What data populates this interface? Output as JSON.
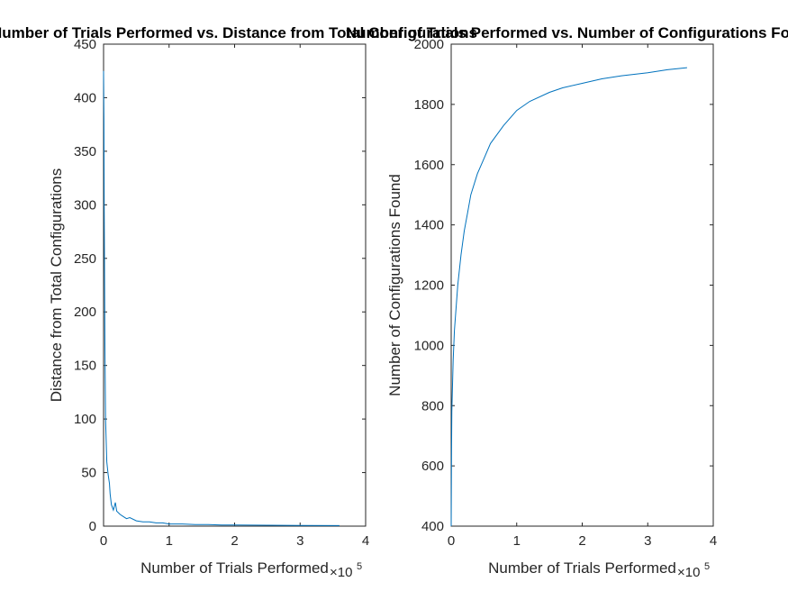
{
  "chart_data": [
    {
      "type": "line",
      "title": "Number of Trials Performed vs. Distance from Total Configurations",
      "xlabel": "Number of Trials Performed",
      "ylabel": "Distance from Total Configurations",
      "x_exponent_base": "×10",
      "x_exponent_power": "5",
      "xlim": [
        0,
        4
      ],
      "ylim": [
        0,
        450
      ],
      "xticks": [
        0,
        1,
        2,
        3,
        4
      ],
      "xtick_labels": [
        "0",
        "1",
        "2",
        "3",
        "4"
      ],
      "yticks": [
        0,
        50,
        100,
        150,
        200,
        250,
        300,
        350,
        400,
        450
      ],
      "ytick_labels": [
        "0",
        "50",
        "100",
        "150",
        "200",
        "250",
        "300",
        "350",
        "400",
        "450"
      ],
      "grid": false,
      "color": "#0072BD",
      "series": [
        {
          "x": [
            0,
            0.005,
            0.01,
            0.02,
            0.03,
            0.05,
            0.07,
            0.09,
            0.1,
            0.12,
            0.15,
            0.18,
            0.2,
            0.25,
            0.3,
            0.35,
            0.4,
            0.5,
            0.6,
            0.7,
            0.8,
            0.9,
            1.0,
            1.2,
            1.4,
            1.6,
            1.8,
            2.0,
            2.5,
            3.0,
            3.6
          ],
          "y": [
            425,
            380,
            300,
            170,
            100,
            60,
            48,
            40,
            30,
            20,
            15,
            22,
            14,
            11,
            9,
            7,
            8,
            5,
            4,
            4,
            3,
            3,
            2,
            2,
            1.5,
            1.5,
            1,
            1,
            0.8,
            0.6,
            0.5
          ]
        }
      ]
    },
    {
      "type": "line",
      "title": "Number of Trials Performed vs. Number of Configurations Found",
      "xlabel": "Number of Trials Performed",
      "ylabel": "Number of Configurations Found",
      "x_exponent_base": "×10",
      "x_exponent_power": "5",
      "xlim": [
        0,
        4
      ],
      "ylim": [
        400,
        2000
      ],
      "xticks": [
        0,
        1,
        2,
        3,
        4
      ],
      "xtick_labels": [
        "0",
        "1",
        "2",
        "3",
        "4"
      ],
      "yticks": [
        400,
        600,
        800,
        1000,
        1200,
        1400,
        1600,
        1800,
        2000
      ],
      "ytick_labels": [
        "400",
        "600",
        "800",
        "1000",
        "1200",
        "1400",
        "1600",
        "1800",
        "2000"
      ],
      "grid": false,
      "color": "#0072BD",
      "series": [
        {
          "x": [
            0,
            0.005,
            0.01,
            0.03,
            0.05,
            0.1,
            0.15,
            0.2,
            0.25,
            0.3,
            0.4,
            0.5,
            0.6,
            0.8,
            1.0,
            1.2,
            1.5,
            1.7,
            2.0,
            2.3,
            2.6,
            3.0,
            3.3,
            3.6
          ],
          "y": [
            400,
            650,
            780,
            950,
            1050,
            1200,
            1300,
            1380,
            1440,
            1500,
            1570,
            1620,
            1670,
            1730,
            1780,
            1810,
            1840,
            1855,
            1870,
            1885,
            1895,
            1905,
            1915,
            1922
          ]
        }
      ]
    }
  ]
}
